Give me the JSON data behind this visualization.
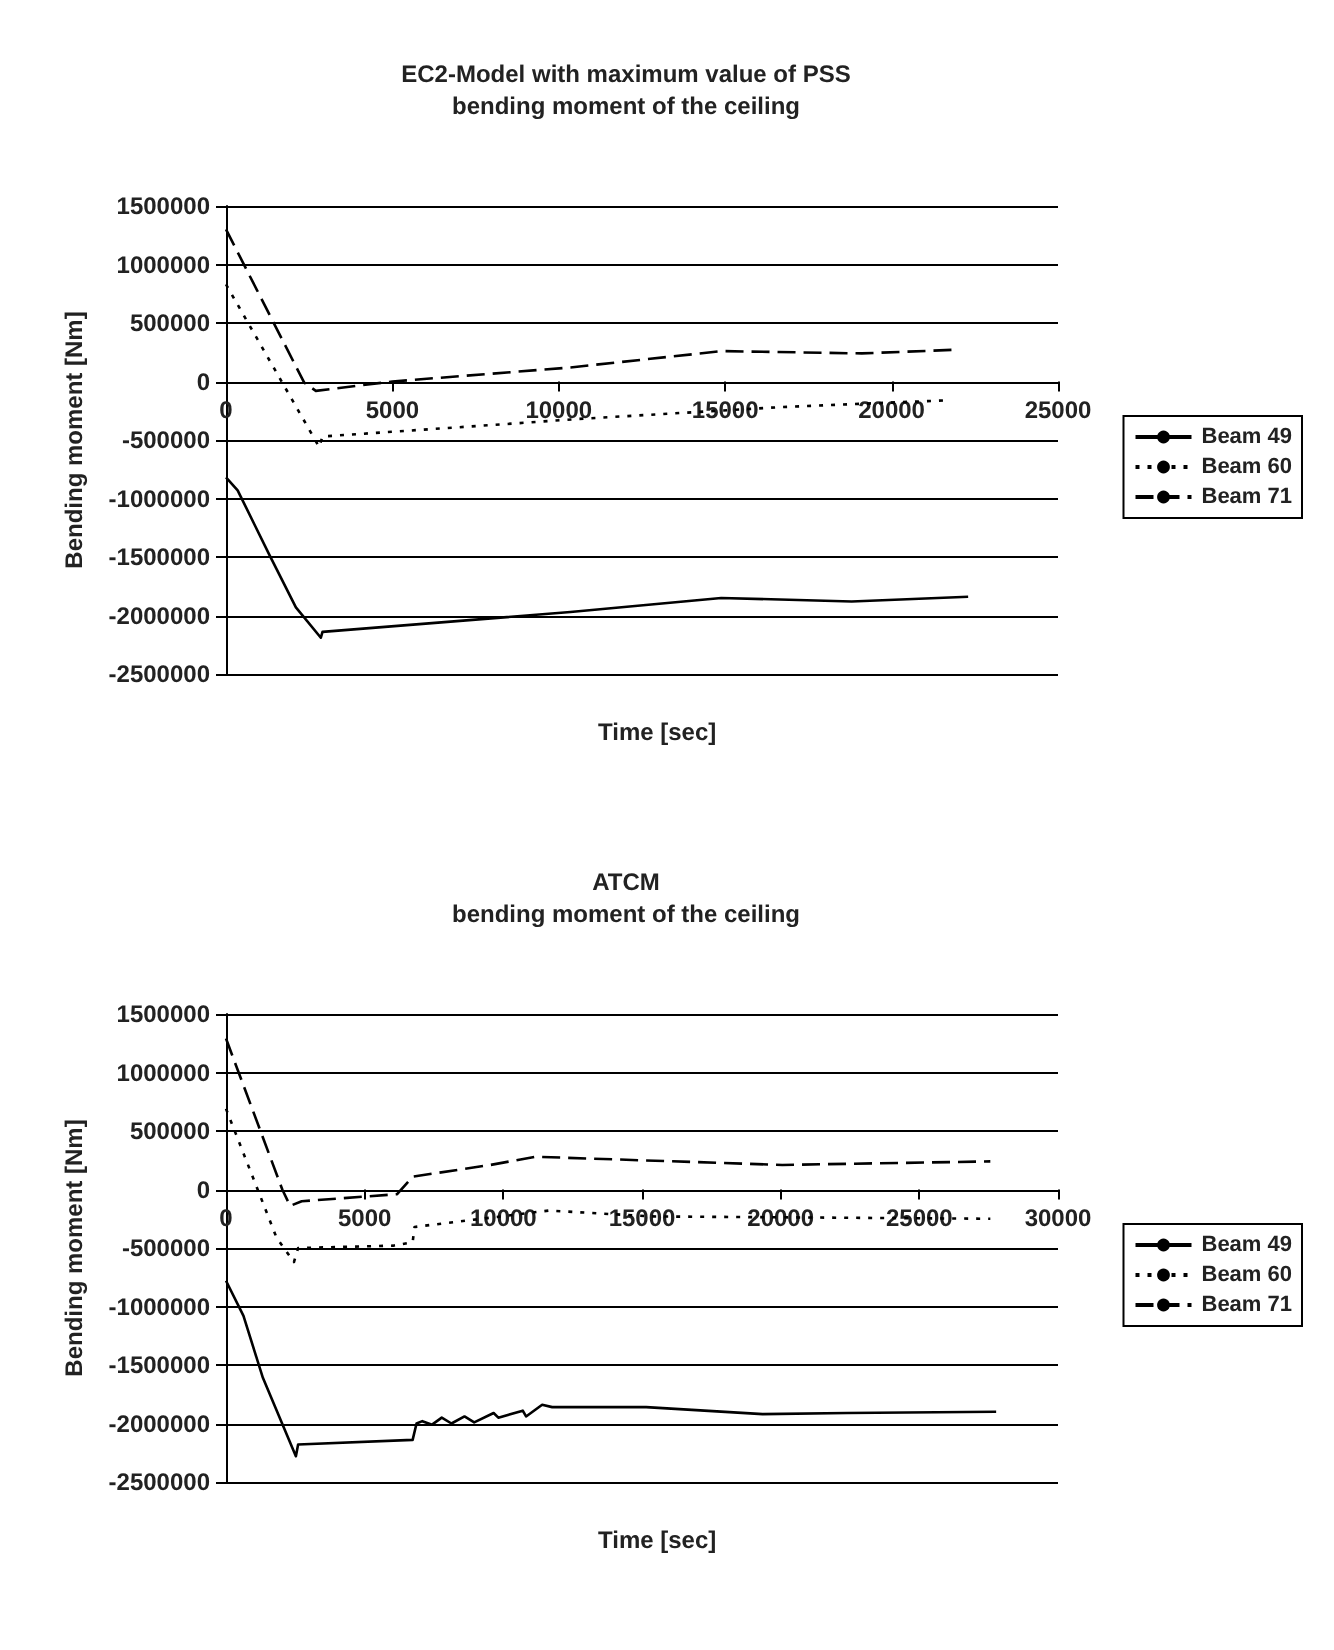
{
  "chart_data": [
    {
      "type": "line",
      "title": "EC2-Model with maximum value of PSS",
      "subtitle": "bending moment of the ceiling",
      "xlabel": "Time [sec]",
      "ylabel": "Bending moment [Nm]",
      "xlim": [
        0,
        25000
      ],
      "xticks": [
        0,
        5000,
        10000,
        15000,
        20000,
        25000
      ],
      "ylim": [
        -2500000,
        1500000
      ],
      "yticks": [
        -2500000,
        -2000000,
        -1500000,
        -1000000,
        -500000,
        0,
        500000,
        1000000,
        1500000
      ],
      "grid": "y",
      "legend": "right",
      "marker": "none",
      "series": [
        {
          "name": "Beam 49",
          "color": "#000000",
          "line_style": "solid",
          "x": [
            0,
            350,
            1300,
            2100,
            2850,
            2900,
            10350,
            14880,
            18800,
            22300
          ],
          "values": [
            -820000,
            -930000,
            -1480000,
            -1930000,
            -2190000,
            -2140000,
            -1970000,
            -1850000,
            -1880000,
            -1840000
          ]
        },
        {
          "name": "Beam 60",
          "color": "#000000",
          "line_style": "dotted",
          "x": [
            0,
            2800,
            2900,
            8600,
            10600,
            16600,
            21700
          ],
          "values": [
            830000,
            -560000,
            -470000,
            -360000,
            -320000,
            -220000,
            -160000
          ]
        },
        {
          "name": "Beam 71",
          "color": "#000000",
          "line_style": "dashed",
          "x": [
            0,
            2350,
            2700,
            5000,
            10350,
            14900,
            19100,
            21800
          ],
          "values": [
            1300000,
            -10000,
            -80000,
            0,
            120000,
            260000,
            240000,
            270000
          ]
        }
      ]
    },
    {
      "type": "line",
      "title": "ATCM",
      "subtitle": "bending moment of the ceiling",
      "xlabel": "Time [sec]",
      "ylabel": "Bending moment [Nm]",
      "xlim": [
        0,
        30000
      ],
      "xticks": [
        0,
        5000,
        10000,
        15000,
        20000,
        25000,
        30000
      ],
      "ylim": [
        -2500000,
        1500000
      ],
      "yticks": [
        -2500000,
        -2000000,
        -1500000,
        -1000000,
        -500000,
        0,
        500000,
        1000000,
        1500000
      ],
      "grid": "y",
      "legend": "right",
      "marker": "none",
      "series": [
        {
          "name": "Beam 49",
          "color": "#000000",
          "line_style": "solid",
          "x": [
            0,
            630,
            1330,
            2520,
            2600,
            6730,
            6870,
            7080,
            7430,
            7780,
            8130,
            8600,
            8950,
            9650,
            9820,
            10700,
            10820,
            11400,
            11760,
            15150,
            19350,
            22400,
            27770
          ],
          "values": [
            -780000,
            -1080000,
            -1610000,
            -2280000,
            -2180000,
            -2140000,
            -2000000,
            -1980000,
            -2010000,
            -1950000,
            -2000000,
            -1940000,
            -1990000,
            -1910000,
            -1950000,
            -1890000,
            -1940000,
            -1840000,
            -1860000,
            -1860000,
            -1920000,
            -1910000,
            -1900000
          ]
        },
        {
          "name": "Beam 60",
          "color": "#000000",
          "line_style": "dotted",
          "x": [
            0,
            1820,
            2450,
            2600,
            6030,
            6730,
            6800,
            11640,
            15360,
            27560
          ],
          "values": [
            690000,
            -410000,
            -620000,
            -500000,
            -480000,
            -450000,
            -320000,
            -180000,
            -230000,
            -250000
          ]
        },
        {
          "name": "Beam 71",
          "color": "#000000",
          "line_style": "dashed",
          "x": [
            0,
            2030,
            2310,
            2730,
            6170,
            6730,
            9540,
            11150,
            14940,
            20060,
            27560
          ],
          "values": [
            1290000,
            0,
            -140000,
            -100000,
            -40000,
            110000,
            210000,
            280000,
            250000,
            210000,
            240000
          ]
        }
      ]
    }
  ]
}
